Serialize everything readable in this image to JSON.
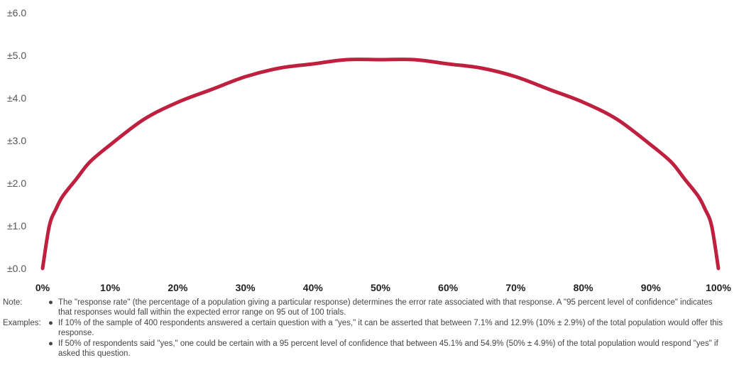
{
  "chart_data": {
    "type": "line",
    "title": "",
    "xlabel": "",
    "ylabel": "",
    "x_ticks": [
      "0%",
      "10%",
      "20%",
      "30%",
      "40%",
      "50%",
      "60%",
      "70%",
      "80%",
      "90%",
      "100%"
    ],
    "y_ticks": [
      "±0.0",
      "±1.0",
      "±2.0",
      "±3.0",
      "±4.0",
      "±5.0",
      "±6.0"
    ],
    "xlim": [
      0,
      100
    ],
    "ylim": [
      0,
      6
    ],
    "grid": false,
    "series": [
      {
        "color": "#c0203f",
        "x": [
          0,
          1,
          2,
          3,
          5,
          7,
          10,
          15,
          20,
          25,
          30,
          35,
          40,
          45,
          50,
          55,
          60,
          65,
          70,
          75,
          80,
          85,
          90,
          93,
          95,
          97,
          98,
          99,
          100
        ],
        "y": [
          0.0,
          1.0,
          1.4,
          1.7,
          2.1,
          2.5,
          2.9,
          3.5,
          3.9,
          4.2,
          4.5,
          4.7,
          4.8,
          4.9,
          4.9,
          4.9,
          4.8,
          4.7,
          4.5,
          4.2,
          3.9,
          3.5,
          2.9,
          2.5,
          2.1,
          1.7,
          1.4,
          1.0,
          0.0
        ]
      }
    ]
  },
  "notes": {
    "note_label": "Note:",
    "note_text": "The \"response rate\" (the percentage of a population giving a particular response) determines the error rate associated with that response. A \"95 percent level of confidence\" indicates that responses would fall within the expected error range on 95 out of 100 trials.",
    "examples_label": "Examples:",
    "example_1": "If 10% of the sample of 400 respondents answered a certain question with a \"yes,\" it can be asserted that between 7.1% and 12.9% (10% ± 2.9%) of the total population would offer this response.",
    "example_2": "If 50% of respondents said \"yes,\" one could be certain with a 95 percent level of confidence that between 45.1% and 54.9% (50% ± 4.9%) of the total population would respond \"yes\" if asked this question.",
    "bullet": "●"
  }
}
